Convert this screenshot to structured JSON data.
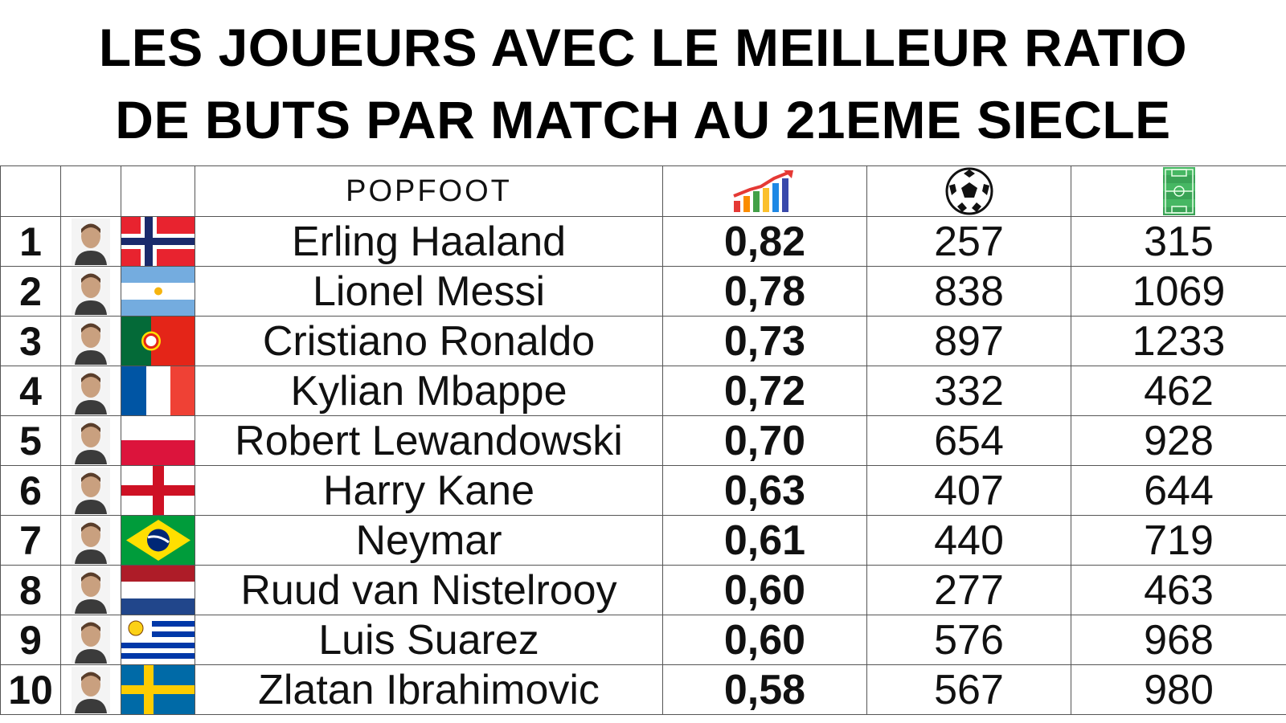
{
  "title": {
    "line1": "LES JOUEURS AVEC LE MEILLEUR RATIO",
    "line2": "DE BUTS PAR MATCH AU 21EME SIECLE"
  },
  "header": {
    "brand": "POPFOOT",
    "ratio_icon": "bar-chart-growth-icon",
    "goals_icon": "soccer-ball-icon",
    "matches_icon": "football-pitch-icon"
  },
  "rows": [
    {
      "rank": "1",
      "name": "Erling Haaland",
      "flag": "norway",
      "ratio": "0,82",
      "goals": "257",
      "matches": "315"
    },
    {
      "rank": "2",
      "name": "Lionel Messi",
      "flag": "argentina",
      "ratio": "0,78",
      "goals": "838",
      "matches": "1069"
    },
    {
      "rank": "3",
      "name": "Cristiano Ronaldo",
      "flag": "portugal",
      "ratio": "0,73",
      "goals": "897",
      "matches": "1233"
    },
    {
      "rank": "4",
      "name": "Kylian Mbappe",
      "flag": "france",
      "ratio": "0,72",
      "goals": "332",
      "matches": "462"
    },
    {
      "rank": "5",
      "name": "Robert Lewandowski",
      "flag": "poland",
      "ratio": "0,70",
      "goals": "654",
      "matches": "928"
    },
    {
      "rank": "6",
      "name": "Harry Kane",
      "flag": "england",
      "ratio": "0,63",
      "goals": "407",
      "matches": "644"
    },
    {
      "rank": "7",
      "name": "Neymar",
      "flag": "brazil",
      "ratio": "0,61",
      "goals": "440",
      "matches": "719"
    },
    {
      "rank": "8",
      "name": "Ruud van Nistelrooy",
      "flag": "netherlands",
      "ratio": "0,60",
      "goals": "277",
      "matches": "463"
    },
    {
      "rank": "9",
      "name": "Luis Suarez",
      "flag": "uruguay",
      "ratio": "0,60",
      "goals": "576",
      "matches": "968"
    },
    {
      "rank": "10",
      "name": "Zlatan Ibrahimovic",
      "flag": "sweden",
      "ratio": "0,58",
      "goals": "567",
      "matches": "980"
    }
  ],
  "colors": {
    "norway_red": "#e8232f",
    "norway_blue": "#1a2a6c",
    "argentina_blue": "#74acdf",
    "portugal_green": "#046a38",
    "portugal_red": "#e42518",
    "france_blue": "#0055a4",
    "france_red": "#ef4135",
    "poland_red": "#dc143c",
    "england_red": "#ce1124",
    "brazil_green": "#009c3b",
    "brazil_yellow": "#ffdf00",
    "brazil_blue": "#002776",
    "netherlands_red": "#ae1c28",
    "netherlands_blue": "#21468b",
    "uruguay_blue": "#0038a8",
    "sweden_blue": "#006aa7",
    "sweden_yellow": "#fecc00"
  }
}
